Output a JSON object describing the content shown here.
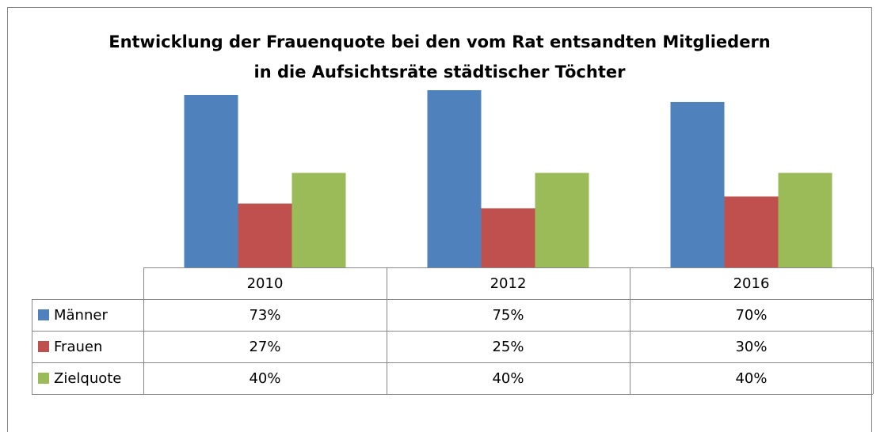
{
  "chart_data": {
    "type": "bar",
    "title": "Entwicklung der Frauenquote bei den vom Rat entsandten Mitgliedern\nin die Aufsichtsräte städtischer Töchter",
    "categories": [
      "2010",
      "2012",
      "2016"
    ],
    "series": [
      {
        "name": "Männer",
        "color": "#4f81bd",
        "values": [
          73,
          75,
          70
        ],
        "value_labels": [
          "73%",
          "75%",
          "70%"
        ]
      },
      {
        "name": "Frauen",
        "color": "#c0504d",
        "values": [
          27,
          25,
          30
        ],
        "value_labels": [
          "27%",
          "25%",
          "30%"
        ]
      },
      {
        "name": "Zielquote",
        "color": "#9bbb59",
        "values": [
          40,
          40,
          40
        ],
        "value_labels": [
          "40%",
          "40%",
          "40%"
        ]
      }
    ]
  }
}
